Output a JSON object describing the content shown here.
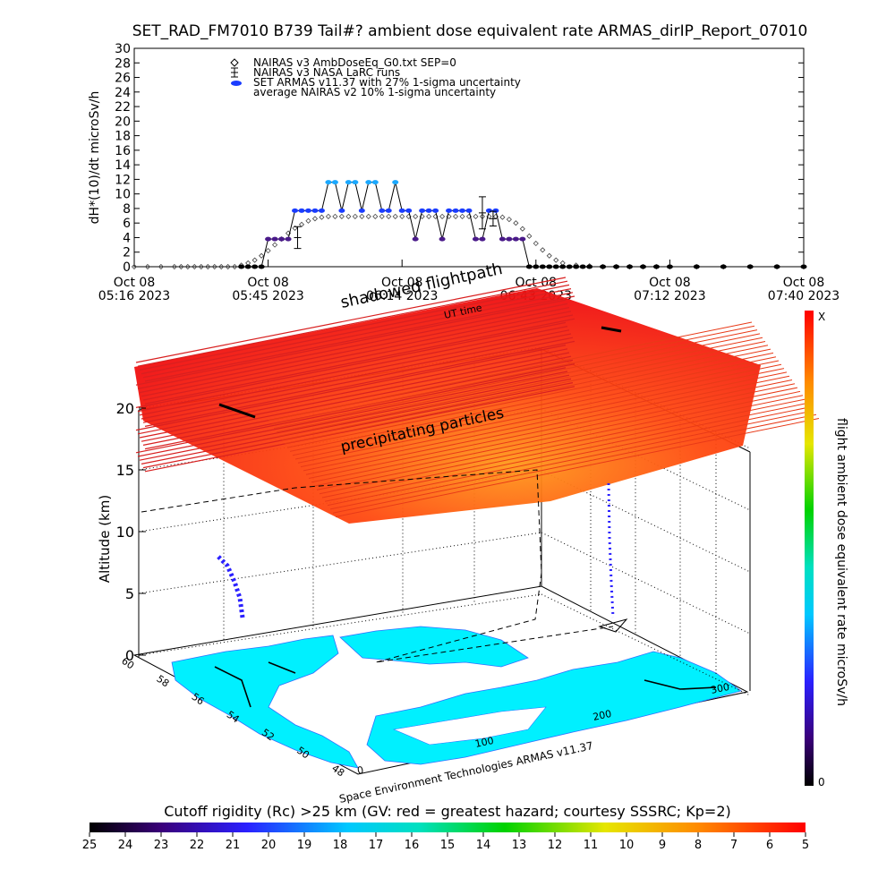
{
  "title": "SET_RAD_FM7010  B739 Tail#? ambient dose equivalent rate ARMAS_dirIP_Report_07010",
  "chart_data": [
    {
      "type": "scatter",
      "title": "SET_RAD_FM7010  B739 Tail#? ambient dose equivalent rate ARMAS_dirIP_Report_07010",
      "ylabel": "dH*(10)/dt microSv/h",
      "ylim": [
        0,
        30
      ],
      "yticks": [
        "0",
        "2",
        "4",
        "6",
        "8",
        "10",
        "12",
        "14",
        "16",
        "18",
        "20",
        "22",
        "24",
        "26",
        "28",
        "30"
      ],
      "xticks": [
        {
          "line1": "Oct 08",
          "line2": "05:16 2023"
        },
        {
          "line1": "Oct 08",
          "line2": "05:45 2023"
        },
        {
          "line1": "Oct 08",
          "line2": "06:14 2023"
        },
        {
          "line1": "Oct 08",
          "line2": "06:43 2023"
        },
        {
          "line1": "Oct 08",
          "line2": "07:12 2023"
        },
        {
          "line1": "Oct 08",
          "line2": "07:40 2023"
        }
      ],
      "legend": [
        {
          "label": "NAIRAS v3 AmbDoseEq_G0.txt SEP=0",
          "marker": "diamond"
        },
        {
          "label": "NAIRAS v3 NASA LaRC runs",
          "marker": "errorbar"
        },
        {
          "label": "SET ARMAS v11.37 with 27% 1-sigma uncertainty",
          "marker": "dot"
        },
        {
          "label": "average NAIRAS v2 10% 1-sigma uncertainty",
          "marker": "none"
        }
      ],
      "legend_position": "top-left",
      "series": [
        {
          "name": "NAIRAS v3 AmbDoseEq_G0.txt SEP=0",
          "x": [
            0,
            0.1,
            0.2,
            0.3,
            0.35,
            0.4,
            0.45,
            0.5,
            0.55,
            0.6,
            0.65,
            0.7,
            0.75,
            0.8,
            0.85,
            0.9,
            0.95,
            1.0,
            1.05,
            1.1,
            1.15,
            1.2,
            1.25,
            1.3,
            1.35,
            1.4,
            1.45,
            1.5,
            1.55,
            1.6,
            1.65,
            1.7,
            1.75,
            1.8,
            1.85,
            1.9,
            1.95,
            2.0,
            2.05,
            2.1,
            2.15,
            2.2,
            2.25,
            2.3,
            2.35,
            2.4,
            2.45,
            2.5,
            2.55,
            2.6,
            2.65,
            2.7,
            2.75,
            2.8,
            2.85,
            2.9,
            2.95,
            3.0,
            3.05,
            3.1,
            3.15,
            3.2,
            3.3,
            3.4,
            3.5,
            3.6,
            3.7,
            3.8,
            3.9,
            4.0,
            4.2,
            4.4,
            4.6,
            4.8,
            5.0
          ],
          "y": [
            0,
            0,
            0,
            0,
            0,
            0,
            0,
            0,
            0,
            0,
            0,
            0,
            0,
            0.2,
            0.5,
            0.9,
            1.5,
            2.2,
            3.0,
            3.8,
            4.6,
            5.3,
            5.8,
            6.3,
            6.6,
            6.8,
            6.9,
            6.9,
            6.9,
            6.9,
            6.9,
            6.9,
            6.9,
            6.9,
            6.9,
            6.9,
            6.9,
            6.9,
            6.9,
            6.9,
            6.9,
            6.9,
            6.9,
            6.9,
            6.9,
            6.9,
            6.9,
            6.9,
            6.9,
            6.9,
            6.9,
            6.9,
            6.8,
            6.5,
            6.0,
            5.2,
            4.2,
            3.2,
            2.3,
            1.5,
            0.9,
            0.5,
            0.2,
            0.1,
            0,
            0,
            0,
            0,
            0,
            0,
            0,
            0,
            0,
            0,
            0
          ]
        },
        {
          "name": "NAIRAS v3 NASA LaRC runs",
          "x": [
            1.22,
            2.6,
            2.68
          ],
          "y": [
            4.0,
            7.4,
            6.6
          ],
          "err": [
            1.5,
            2.2,
            1.0
          ]
        },
        {
          "name": "SET ARMAS v11.37 with 27% 1-sigma uncertainty",
          "x": [
            0.8,
            0.85,
            0.9,
            0.95,
            1.0,
            1.05,
            1.1,
            1.15,
            1.2,
            1.25,
            1.3,
            1.35,
            1.4,
            1.45,
            1.5,
            1.55,
            1.6,
            1.65,
            1.7,
            1.75,
            1.8,
            1.85,
            1.9,
            1.95,
            2.0,
            2.05,
            2.1,
            2.15,
            2.2,
            2.25,
            2.3,
            2.35,
            2.4,
            2.45,
            2.5,
            2.55,
            2.6,
            2.65,
            2.7,
            2.75,
            2.8,
            2.85,
            2.9,
            2.95,
            3.0,
            3.05,
            3.1,
            3.15,
            3.2,
            3.25,
            3.3,
            3.35,
            3.4,
            3.5,
            3.6,
            3.7,
            3.8,
            3.9,
            4.0,
            4.2,
            4.4,
            4.6,
            4.8,
            5.0
          ],
          "y": [
            0,
            0,
            0,
            0,
            3.8,
            3.8,
            3.8,
            3.8,
            7.7,
            7.7,
            7.7,
            7.7,
            7.7,
            11.6,
            11.6,
            7.7,
            11.6,
            11.6,
            7.7,
            11.6,
            11.6,
            7.7,
            7.7,
            11.6,
            7.7,
            7.7,
            3.8,
            7.7,
            7.7,
            7.7,
            3.8,
            7.7,
            7.7,
            7.7,
            7.7,
            3.8,
            3.8,
            7.7,
            7.7,
            3.8,
            3.8,
            3.8,
            3.8,
            0,
            0,
            0,
            0,
            0,
            0,
            0,
            0,
            0,
            0,
            0,
            0,
            0,
            0,
            0,
            0,
            0,
            0,
            0,
            0,
            0
          ]
        }
      ]
    },
    {
      "type": "scatter",
      "subtype": "3d-flightpath",
      "annotations": [
        "shadowed flightpath",
        "UT time",
        "precipitating particles"
      ],
      "zlabel": "Altitude (km)",
      "zticks": [
        "0",
        "5",
        "10",
        "15",
        "20"
      ],
      "xticks": [
        "0",
        "100",
        "200",
        "300"
      ],
      "yticks": [
        "48",
        "50",
        "52",
        "54",
        "56",
        "58",
        "60"
      ],
      "footer": "Space Environment Technologies ARMAS v11.37",
      "colorbar_label": "flight ambient dose equivalent rate microSv/h",
      "colorbar_top": "X",
      "colorbar_bottom": "0"
    },
    {
      "type": "heatmap",
      "subtype": "colorbar",
      "title": "Cutoff rigidity (Rc) >25 km (GV: red = greatest hazard; courtesy SSSRC; Kp=2)",
      "ticks": [
        "25",
        "24",
        "23",
        "22",
        "21",
        "20",
        "19",
        "18",
        "17",
        "16",
        "15",
        "14",
        "13",
        "12",
        "11",
        "10",
        "9",
        "8",
        "7",
        "6",
        "5"
      ]
    }
  ]
}
